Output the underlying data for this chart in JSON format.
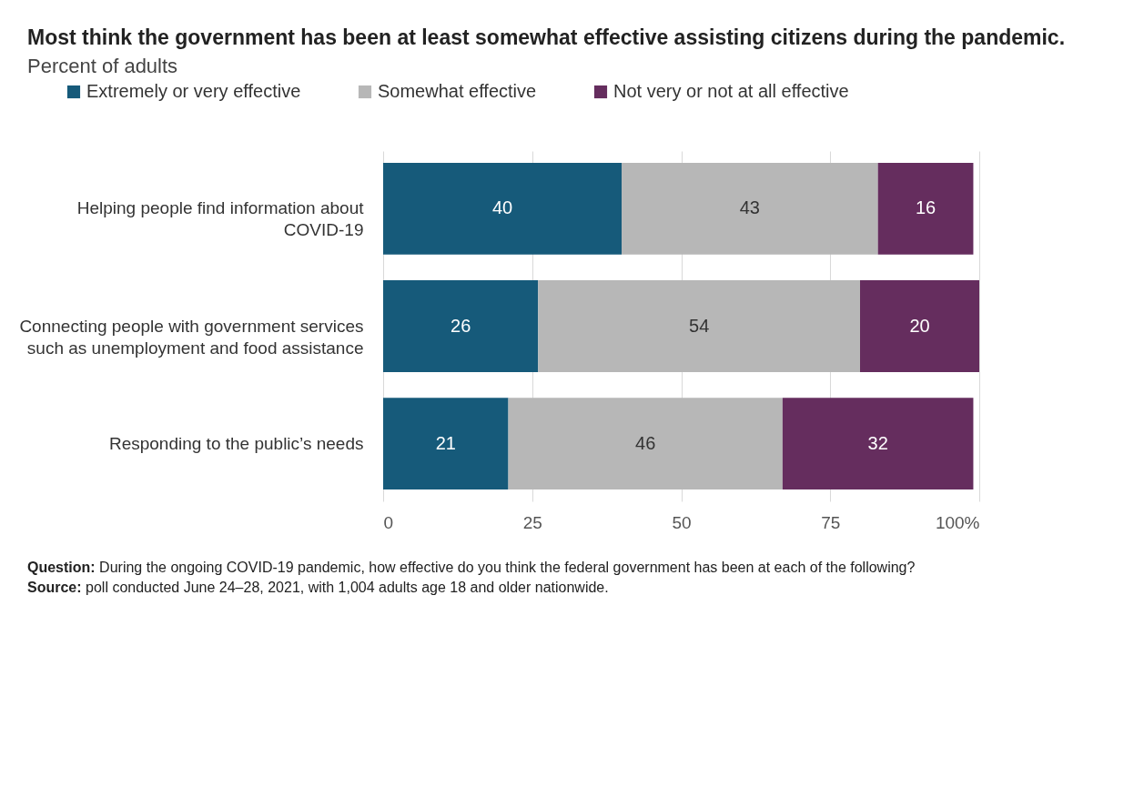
{
  "chart_data": {
    "type": "bar",
    "orientation": "horizontal",
    "stacked": true,
    "title": "Most think the government has been at least somewhat effective assisting citizens during the pandemic.",
    "subtitle": "Percent of adults",
    "categories": [
      "Helping people find information about COVID-19",
      "Connecting people with government services such as unemployment and food assistance",
      "Responding to the public’s needs"
    ],
    "series": [
      {
        "name": "Extremely or very effective",
        "color": "#165a7a",
        "values": [
          40,
          26,
          21
        ]
      },
      {
        "name": "Somewhat effective",
        "color": "#b7b7b7",
        "values": [
          43,
          54,
          46
        ]
      },
      {
        "name": "Not very or not at all effective",
        "color": "#652d5e",
        "values": [
          16,
          20,
          32
        ]
      }
    ],
    "xlim": [
      0,
      100
    ],
    "xticks": [
      0,
      25,
      50,
      75,
      {
        "value": 100,
        "label": "100%"
      }
    ],
    "grid": "x",
    "legend": "top",
    "data_labels": true,
    "annotations": [
      "Question: During the ongoing COVID-19 pandemic, how effective do you think the federal government has been at each of the following?",
      "Source: poll conducted June 24–28, 2021, with 1,004 adults age 18 and older nationwide."
    ]
  }
}
